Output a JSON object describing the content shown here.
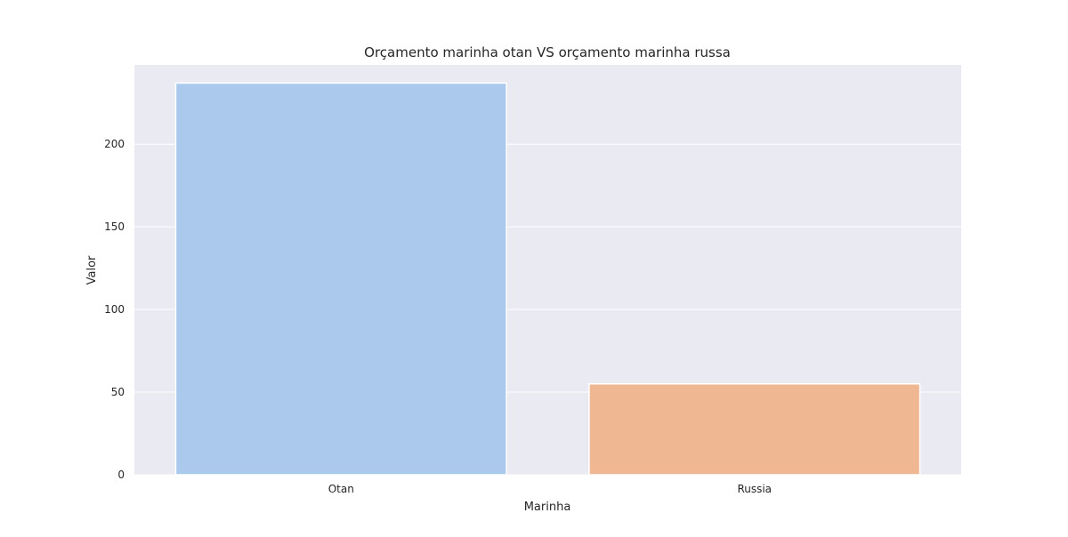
{
  "chart_data": {
    "type": "bar",
    "title": "Orçamento marinha otan VS orçamento marinha russa",
    "xlabel": "Marinha",
    "ylabel": "Valor",
    "categories": [
      "Otan",
      "Russia"
    ],
    "values": [
      237,
      55
    ],
    "bar_colors": [
      "#abc9ec",
      "#f0b892"
    ],
    "background_color": "#eaeaf2",
    "grid": true,
    "grid_color": "#ffffff",
    "ylim": [
      0,
      248
    ],
    "yticks": [
      0,
      50,
      100,
      150,
      200
    ],
    "ytick_labels": [
      "0",
      "50",
      "100",
      "150",
      "200"
    ]
  }
}
